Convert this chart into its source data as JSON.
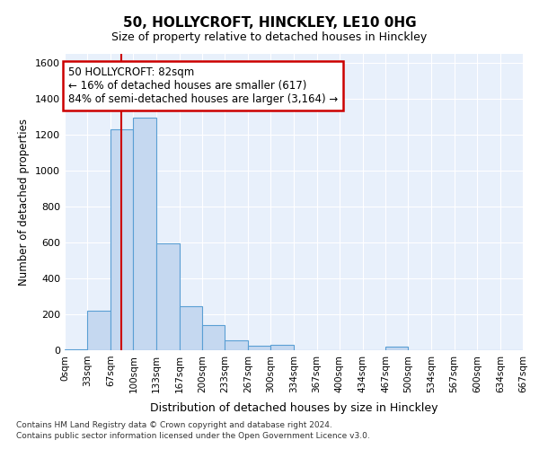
{
  "title": "50, HOLLYCROFT, HINCKLEY, LE10 0HG",
  "subtitle": "Size of property relative to detached houses in Hinckley",
  "xlabel": "Distribution of detached houses by size in Hinckley",
  "ylabel": "Number of detached properties",
  "bar_color": "#c5d8f0",
  "bar_edge_color": "#5a9fd4",
  "background_color": "#e8f0fb",
  "grid_color": "#ffffff",
  "annotation_text": "50 HOLLYCROFT: 82sqm\n← 16% of detached houses are smaller (617)\n84% of semi-detached houses are larger (3,164) →",
  "annotation_box_color": "#ffffff",
  "annotation_box_edge_color": "#cc0000",
  "property_line_color": "#cc0000",
  "property_value": 82,
  "footer_line1": "Contains HM Land Registry data © Crown copyright and database right 2024.",
  "footer_line2": "Contains public sector information licensed under the Open Government Licence v3.0.",
  "bin_edges": [
    0,
    33,
    67,
    100,
    133,
    167,
    200,
    233,
    267,
    300,
    334,
    367,
    400,
    434,
    467,
    500,
    534,
    567,
    600,
    634,
    667
  ],
  "bar_heights": [
    5,
    220,
    1230,
    1295,
    595,
    245,
    140,
    55,
    25,
    30,
    0,
    0,
    0,
    0,
    20,
    0,
    0,
    0,
    0,
    0
  ],
  "ylim": [
    0,
    1650
  ],
  "yticks": [
    0,
    200,
    400,
    600,
    800,
    1000,
    1200,
    1400,
    1600
  ]
}
